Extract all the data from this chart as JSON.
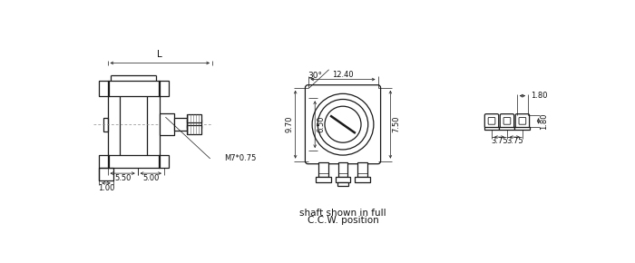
{
  "bg_color": "#ffffff",
  "line_color": "#1a1a1a",
  "text_color": "#111111",
  "fig_width": 7.0,
  "fig_height": 2.9,
  "labels": {
    "L": "L",
    "5_50": "5.50",
    "5_00": "5.00",
    "12_40": "12.40",
    "9_70": "9.70",
    "6_50": "6.50",
    "7_50": "7.50",
    "1_00": "1.00",
    "M7": "M7*0.75",
    "30deg": "30°",
    "shaft_line1": "shaft shown in full",
    "shaft_line2": "C.C.W. position",
    "1_80_top": "1.80",
    "1_80_side": "1.80",
    "3_75_left": "3.75",
    "3_75_right": "3.75"
  }
}
